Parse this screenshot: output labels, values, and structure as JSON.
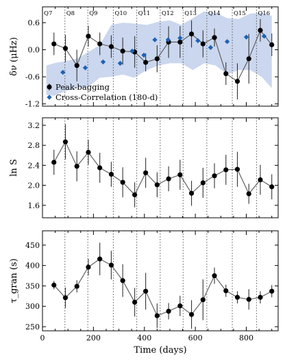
{
  "chart_data": [
    {
      "type": "scatter",
      "ylabel": "δν (μHz)",
      "ylim": [
        -1.25,
        0.95
      ],
      "yticks": [
        -1.2,
        -0.6,
        0.0,
        0.6
      ],
      "xlim": [
        0,
        925
      ],
      "grid": false,
      "legend_position": "bottom-left",
      "quarters": {
        "labels": [
          "Q7",
          "Q8",
          "Q9",
          "Q10",
          "Q11",
          "Q12",
          "Q13",
          "Q14",
          "Q15",
          "Q16"
        ],
        "boundaries": [
          88,
          178,
          278,
          370,
          462,
          552,
          645,
          745,
          840
        ]
      },
      "band": {
        "x": [
          15,
          45,
          90,
          135,
          180,
          225,
          270,
          315,
          360,
          410,
          455,
          500,
          545,
          590,
          635,
          680,
          725,
          770,
          815,
          860,
          900
        ],
        "lower": [
          -1.0,
          -1.02,
          -0.92,
          -0.85,
          -0.82,
          -0.62,
          -0.6,
          -0.55,
          -0.62,
          -0.45,
          -0.35,
          -0.3,
          -0.3,
          -0.45,
          -0.3,
          -0.35,
          -0.55,
          -0.45,
          -0.45,
          -0.6,
          -0.85
        ],
        "upper": [
          -0.35,
          -0.3,
          -0.25,
          -0.2,
          -0.05,
          0.1,
          0.55,
          0.6,
          0.58,
          0.55,
          0.62,
          0.65,
          0.55,
          0.7,
          0.85,
          0.82,
          0.7,
          0.68,
          0.8,
          0.82,
          0.75
        ]
      },
      "series": [
        {
          "name": "Peak-bagging",
          "x": [
            45,
            90,
            135,
            180,
            225,
            270,
            315,
            362,
            405,
            450,
            495,
            540,
            585,
            630,
            675,
            720,
            765,
            810,
            855,
            900
          ],
          "y": [
            0.13,
            0.03,
            -0.35,
            0.3,
            0.13,
            0.07,
            -0.03,
            -0.05,
            -0.28,
            -0.2,
            0.17,
            0.17,
            0.35,
            0.13,
            0.27,
            -0.53,
            -0.7,
            -0.2,
            0.43,
            0.11
          ],
          "err": [
            0.25,
            0.3,
            0.35,
            0.23,
            0.25,
            0.25,
            0.3,
            0.35,
            0.2,
            0.3,
            0.35,
            0.35,
            0.3,
            0.3,
            0.2,
            0.25,
            0.4,
            0.55,
            0.25,
            0.25
          ]
        },
        {
          "name": "Cross-Correlation (180-d)",
          "x": [
            80,
            168,
            238,
            305,
            352,
            398,
            441,
            493,
            540,
            610,
            660,
            725,
            800,
            870
          ],
          "y": [
            -0.5,
            -0.4,
            -0.27,
            -0.3,
            -0.03,
            -0.12,
            0.22,
            0.22,
            0.26,
            0.2,
            0.05,
            0.18,
            0.28,
            0.3
          ]
        }
      ]
    },
    {
      "type": "scatter",
      "ylabel": "ln S",
      "ylim": [
        1.35,
        3.35
      ],
      "yticks": [
        1.6,
        2.0,
        2.4,
        2.8,
        3.2
      ],
      "xlim": [
        0,
        925
      ],
      "series": [
        {
          "name": "",
          "x": [
            45,
            90,
            135,
            180,
            225,
            270,
            315,
            362,
            405,
            450,
            495,
            540,
            585,
            630,
            675,
            720,
            765,
            810,
            855,
            900
          ],
          "y": [
            2.46,
            2.87,
            2.38,
            2.66,
            2.35,
            2.22,
            2.06,
            1.81,
            2.25,
            2.01,
            2.13,
            2.21,
            1.84,
            2.05,
            2.19,
            2.31,
            2.32,
            1.83,
            2.11,
            1.97
          ],
          "err": [
            0.25,
            0.35,
            0.3,
            0.25,
            0.3,
            0.25,
            0.3,
            0.25,
            0.3,
            0.25,
            0.25,
            0.3,
            0.25,
            0.3,
            0.25,
            0.3,
            0.35,
            0.2,
            0.3,
            0.25
          ]
        }
      ]
    },
    {
      "type": "scatter",
      "ylabel": "τ_gran (s)",
      "ylim": [
        240,
        485
      ],
      "yticks": [
        250,
        300,
        350,
        400,
        450
      ],
      "xlim": [
        0,
        925
      ],
      "xlabel": "Time (days)",
      "xticks": [
        0,
        200,
        400,
        600,
        800
      ],
      "series": [
        {
          "name": "",
          "x": [
            45,
            90,
            135,
            180,
            225,
            270,
            315,
            362,
            405,
            450,
            495,
            540,
            585,
            630,
            675,
            720,
            765,
            810,
            855,
            900
          ],
          "y": [
            352,
            321,
            349,
            396,
            416,
            401,
            363,
            310,
            337,
            277,
            288,
            301,
            280,
            316,
            375,
            338,
            322,
            317,
            322,
            337
          ],
          "err": [
            10,
            25,
            15,
            20,
            40,
            35,
            40,
            35,
            45,
            30,
            20,
            25,
            35,
            50,
            20,
            15,
            15,
            25,
            15,
            15
          ]
        }
      ]
    }
  ],
  "colors": {
    "band": "#cbd7ee",
    "peak_bagging": "#000000",
    "cross_correlation": "#1f62b5",
    "line": "#555555",
    "quarter_line": "#555555"
  }
}
